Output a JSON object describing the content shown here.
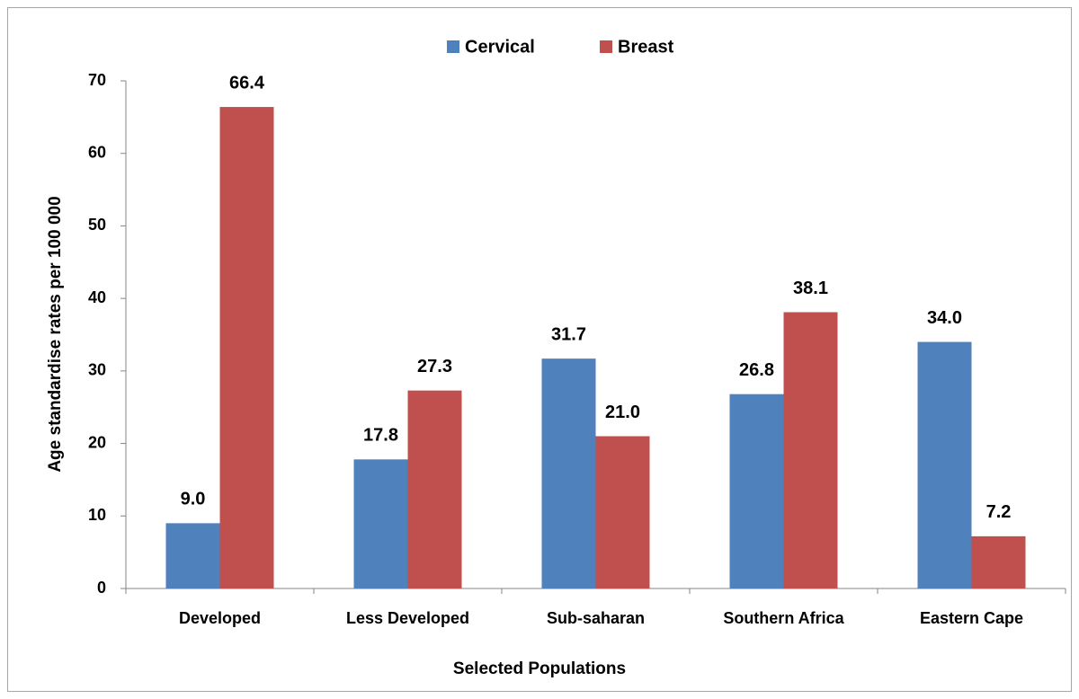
{
  "chart_data": {
    "type": "bar",
    "categories": [
      "Developed",
      "Less Developed",
      "Sub-saharan",
      "Southern Africa",
      "Eastern Cape"
    ],
    "series": [
      {
        "name": "Cervical",
        "color": "#4f81bd",
        "values": [
          9.0,
          17.8,
          31.7,
          26.8,
          34.0
        ],
        "value_labels": [
          "9.0",
          "17.8",
          "31.7",
          "26.8",
          "34.0"
        ]
      },
      {
        "name": "Breast",
        "color": "#c0504d",
        "values": [
          66.4,
          27.3,
          21.0,
          38.1,
          7.2
        ],
        "value_labels": [
          "66.4",
          "27.3",
          "21.0",
          "38.1",
          "7.2"
        ]
      }
    ],
    "ylim": [
      0,
      70
    ],
    "yticks": [
      0,
      10,
      20,
      30,
      40,
      50,
      60,
      70
    ],
    "y_label": "Age standardise rates per 100 000",
    "x_label": "Selected Populations",
    "legend": "top",
    "grid": false
  }
}
